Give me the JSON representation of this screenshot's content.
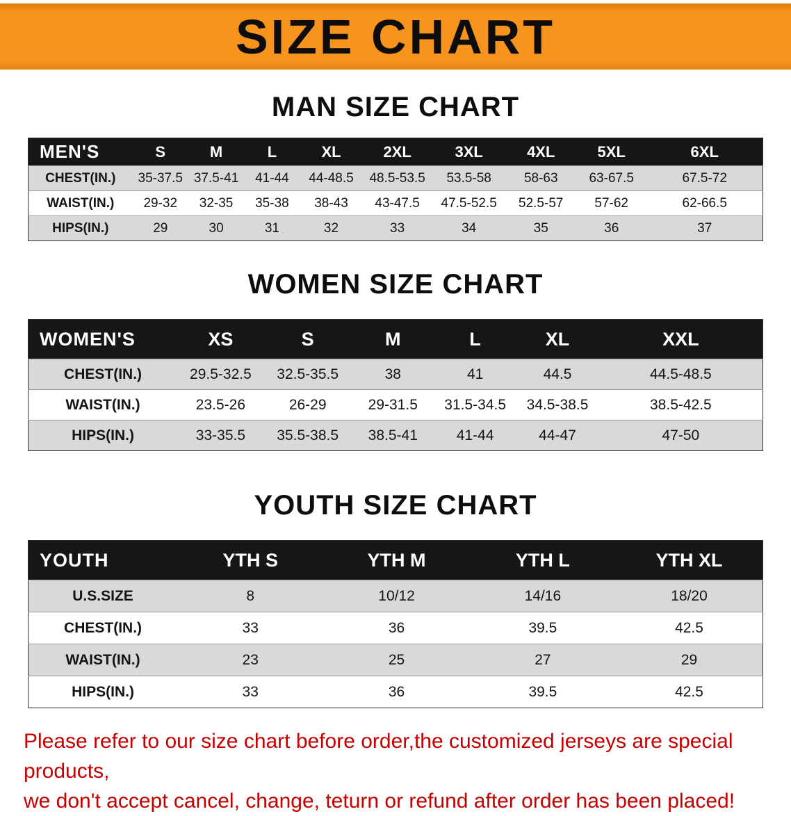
{
  "banner": {
    "title": "SIZE CHART"
  },
  "colors": {
    "accent_orange": "#f7941e",
    "header_black": "#161616",
    "row_gray": "#d9d9d9",
    "notice_red": "#c40000"
  },
  "men": {
    "heading": "MAN SIZE CHART",
    "table": {
      "header": [
        "MEN'S",
        "S",
        "M",
        "L",
        "XL",
        "2XL",
        "3XL",
        "4XL",
        "5XL",
        "6XL"
      ],
      "rows": [
        [
          "CHEST(IN.)",
          "35-37.5",
          "37.5-41",
          "41-44",
          "44-48.5",
          "48.5-53.5",
          "53.5-58",
          "58-63",
          "63-67.5",
          "67.5-72"
        ],
        [
          "WAIST(IN.)",
          "29-32",
          "32-35",
          "35-38",
          "38-43",
          "43-47.5",
          "47.5-52.5",
          "52.5-57",
          "57-62",
          "62-66.5"
        ],
        [
          "HIPS(IN.)",
          "29",
          "30",
          "31",
          "32",
          "33",
          "34",
          "35",
          "36",
          "37"
        ]
      ]
    }
  },
  "women": {
    "heading": "WOMEN SIZE CHART",
    "table": {
      "header": [
        "WOMEN'S",
        "XS",
        "S",
        "M",
        "L",
        "XL",
        "XXL"
      ],
      "rows": [
        [
          "CHEST(IN.)",
          "29.5-32.5",
          "32.5-35.5",
          "38",
          "41",
          "44.5",
          "44.5-48.5"
        ],
        [
          "WAIST(IN.)",
          "23.5-26",
          "26-29",
          "29-31.5",
          "31.5-34.5",
          "34.5-38.5",
          "38.5-42.5"
        ],
        [
          "HIPS(IN.)",
          "33-35.5",
          "35.5-38.5",
          "38.5-41",
          "41-44",
          "44-47",
          "47-50"
        ]
      ]
    }
  },
  "youth": {
    "heading": "YOUTH SIZE CHART",
    "table": {
      "header": [
        "YOUTH",
        "YTH S",
        "YTH M",
        "YTH L",
        "YTH XL"
      ],
      "rows": [
        [
          "U.S.SIZE",
          "8",
          "10/12",
          "14/16",
          "18/20"
        ],
        [
          "CHEST(IN.)",
          "33",
          "36",
          "39.5",
          "42.5"
        ],
        [
          "WAIST(IN.)",
          "23",
          "25",
          "27",
          "29"
        ],
        [
          "HIPS(IN.)",
          "33",
          "36",
          "39.5",
          "42.5"
        ]
      ]
    }
  },
  "notice": {
    "line1": "Please refer to our size chart before order,the customized jerseys are special products,",
    "line2": "we don't accept cancel, change, teturn or refund after order has been placed!"
  }
}
